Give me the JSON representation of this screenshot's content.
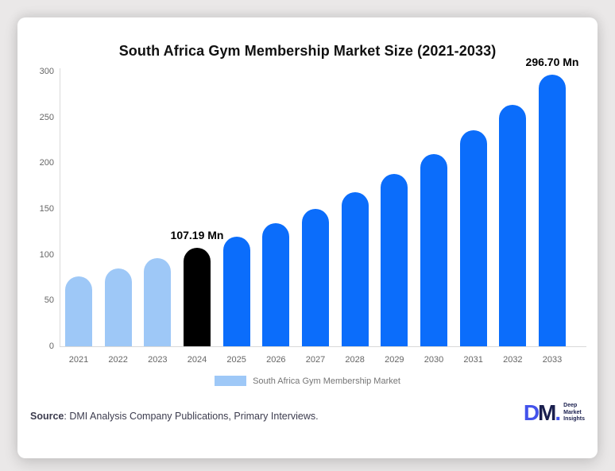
{
  "card": {
    "background": "#ffffff"
  },
  "chart_data": {
    "type": "bar",
    "title": "South Africa Gym Membership Market Size (2021-2033)",
    "categories": [
      "2021",
      "2022",
      "2023",
      "2024",
      "2025",
      "2026",
      "2027",
      "2028",
      "2029",
      "2030",
      "2031",
      "2032",
      "2033"
    ],
    "values": [
      76,
      85,
      96,
      107.19,
      120,
      134,
      150,
      168,
      188,
      210,
      236,
      264,
      296.7
    ],
    "unit": "Mn",
    "colors": [
      "#9ec8f7",
      "#9ec8f7",
      "#9ec8f7",
      "#000000",
      "#0b6dfb",
      "#0b6dfb",
      "#0b6dfb",
      "#0b6dfb",
      "#0b6dfb",
      "#0b6dfb",
      "#0b6dfb",
      "#0b6dfb",
      "#0b6dfb"
    ],
    "y_ticks": [
      0,
      50,
      100,
      150,
      200,
      250,
      300
    ],
    "ylim": [
      0,
      300
    ],
    "grid": false,
    "annotations": [
      {
        "index": 3,
        "text": "107.19 Mn"
      },
      {
        "index": 12,
        "text": "296.70 Mn"
      }
    ],
    "legend": {
      "label": "South Africa Gym Membership Market",
      "swatch_color": "#9ec8f7",
      "position": "bottom-center"
    }
  },
  "source": {
    "label": "Source",
    "rest": ": DMI Analysis Company Publications, Primary Interviews."
  },
  "logo": {
    "monogram_d": "D",
    "monogram_m": "M",
    "monogram_dot": ".",
    "lines": [
      "Deep",
      "Market",
      "Insights"
    ]
  }
}
